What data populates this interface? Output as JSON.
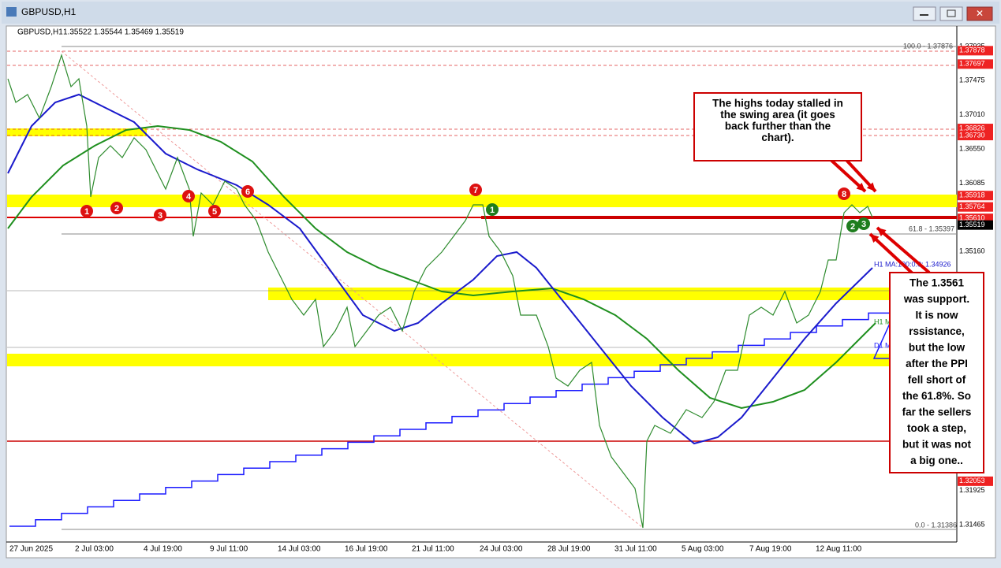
{
  "window": {
    "title": "GBPUSD,H1"
  },
  "chart": {
    "header": {
      "symbol": "GBPUSD,H1",
      "quote": "1.35522 1.35544 1.35469 1.35519"
    },
    "price_axis": [
      "1.37935",
      "1.37475",
      "1.37010",
      "1.36550",
      "1.36085",
      "1.35160",
      "1.31925",
      "1.31465"
    ],
    "level_labels": [
      "1.37878",
      "1.37697",
      "1.36826",
      "1.36730",
      "1.35918",
      "1.35764",
      "1.35610",
      "1.32053"
    ],
    "current_price": "1.35519",
    "date_axis": [
      "27 Jun 2025",
      "2 Jul 03:00",
      "4 Jul 19:00",
      "9 Jul 11:00",
      "14 Jul 03:00",
      "16 Jul 19:00",
      "21 Jul 11:00",
      "24 Jul 03:00",
      "28 Jul 19:00",
      "31 Jul 11:00",
      "5 Aug 03:00",
      "7 Aug 19:00",
      "12 Aug 11:00"
    ],
    "line_labels": {
      "fib_100": "100.0 - 1.37876",
      "fib_618": "61.8 - 1.35397",
      "fib_0": "0.0 - 1.31386",
      "h1_ma100": "H1 MA:100:0:0: 1.34926",
      "h1_ma200": "H1 M",
      "d1_ma": "D1 M"
    },
    "red_markers": [
      "1",
      "2",
      "3",
      "4",
      "5",
      "6",
      "7",
      "8"
    ],
    "green_markers": [
      "1",
      "2",
      "3"
    ],
    "callouts": [
      {
        "lines": [
          "The highs today stalled in",
          "the swing area (it goes",
          "back further than the",
          "chart)."
        ]
      },
      {
        "lines": [
          "The 1.3561",
          "was support.",
          "It is now",
          "rssistance,",
          "but the low",
          "after the PPI",
          "fell short of",
          "the 61.8%. So",
          "far the sellers",
          "took a step,",
          "but it was not",
          "a big one.."
        ]
      }
    ]
  }
}
